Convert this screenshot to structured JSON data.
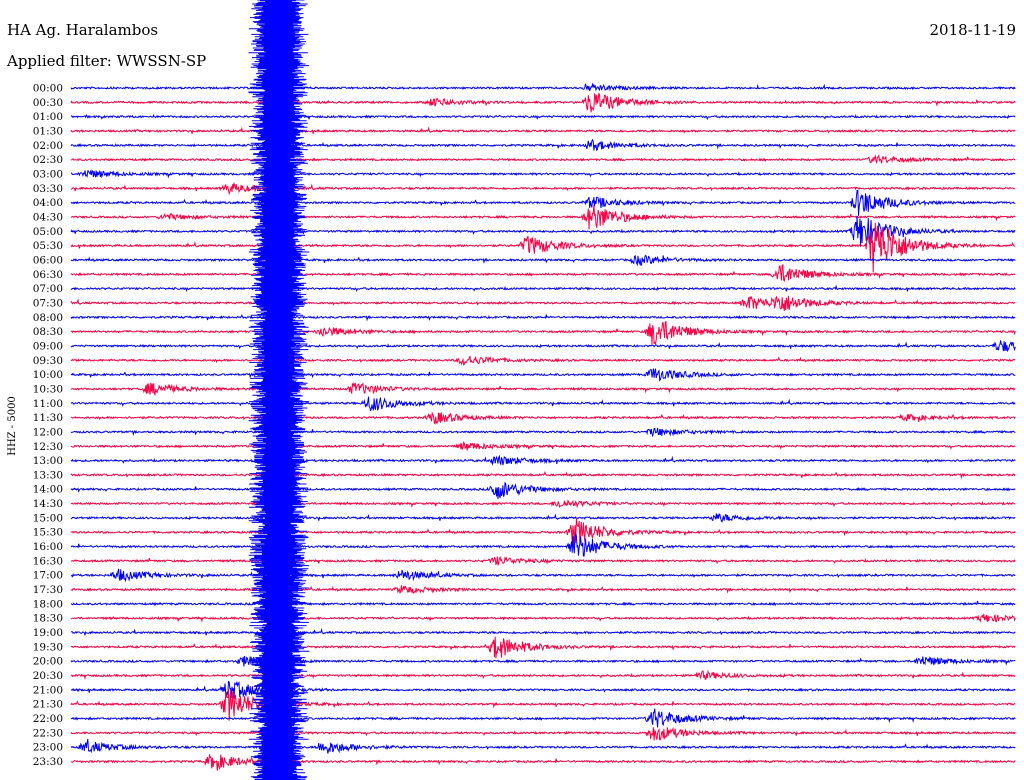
{
  "header": {
    "station": "HA Ag. Haralambos",
    "date": "2018-11-19",
    "filter": "Applied filter: WWSSN-SP"
  },
  "colors": {
    "odd_row": "#0000ff",
    "even_row": "#ff0044",
    "background": "#ffffff"
  },
  "chart_data": {
    "type": "line",
    "subtype": "helicorder",
    "ylabel": "HHZ - 5000",
    "row_labels": [
      "00:00",
      "00:30",
      "01:00",
      "01:30",
      "02:00",
      "02:30",
      "03:00",
      "03:30",
      "04:00",
      "04:30",
      "05:00",
      "05:30",
      "06:00",
      "06:30",
      "07:00",
      "07:30",
      "08:00",
      "08:30",
      "09:00",
      "09:30",
      "10:00",
      "10:30",
      "11:00",
      "11:30",
      "12:00",
      "12:30",
      "13:00",
      "13:30",
      "14:00",
      "14:30",
      "15:00",
      "15:30",
      "16:00",
      "16:30",
      "17:00",
      "17:30",
      "18:00",
      "18:30",
      "19:00",
      "19:30",
      "20:00",
      "20:30",
      "21:00",
      "21:30",
      "22:00",
      "22:30",
      "23:00",
      "23:30"
    ],
    "row_minutes": 30,
    "series_colors": [
      "#0000ff",
      "#ff0044"
    ],
    "events": [
      {
        "row": 0,
        "minute": 16.5,
        "amp": 3
      },
      {
        "row": 1,
        "minute": 11.5,
        "amp": 4
      },
      {
        "row": 1,
        "minute": 16.5,
        "amp": 12
      },
      {
        "row": 4,
        "minute": 16.5,
        "amp": 5
      },
      {
        "row": 5,
        "minute": 25.5,
        "amp": 4
      },
      {
        "row": 6,
        "minute": 0.5,
        "amp": 4
      },
      {
        "row": 7,
        "minute": 5,
        "amp": 5
      },
      {
        "row": 8,
        "minute": 16.5,
        "amp": 6
      },
      {
        "row": 8,
        "minute": 25,
        "amp": 14
      },
      {
        "row": 9,
        "minute": 16.5,
        "amp": 14
      },
      {
        "row": 9,
        "minute": 3,
        "amp": 3
      },
      {
        "row": 10,
        "minute": 25,
        "amp": 18
      },
      {
        "row": 11,
        "minute": 14.5,
        "amp": 10
      },
      {
        "row": 11,
        "minute": 25.5,
        "amp": 30
      },
      {
        "row": 12,
        "minute": 18,
        "amp": 5
      },
      {
        "row": 13,
        "minute": 22.5,
        "amp": 10
      },
      {
        "row": 15,
        "minute": 21.5,
        "amp": 7
      },
      {
        "row": 15,
        "minute": 22.5,
        "amp": 8
      },
      {
        "row": 17,
        "minute": 18.5,
        "amp": 15
      },
      {
        "row": 17,
        "minute": 8,
        "amp": 5
      },
      {
        "row": 18,
        "minute": 29.5,
        "amp": 6
      },
      {
        "row": 19,
        "minute": 12.5,
        "amp": 5
      },
      {
        "row": 20,
        "minute": 18.5,
        "amp": 7
      },
      {
        "row": 21,
        "minute": 2.5,
        "amp": 6
      },
      {
        "row": 21,
        "minute": 9,
        "amp": 6
      },
      {
        "row": 22,
        "minute": 9.5,
        "amp": 8
      },
      {
        "row": 23,
        "minute": 11.5,
        "amp": 6
      },
      {
        "row": 23,
        "minute": 26.5,
        "amp": 3
      },
      {
        "row": 24,
        "minute": 18.5,
        "amp": 4
      },
      {
        "row": 25,
        "minute": 12.5,
        "amp": 4
      },
      {
        "row": 26,
        "minute": 13.5,
        "amp": 5
      },
      {
        "row": 28,
        "minute": 13.5,
        "amp": 10
      },
      {
        "row": 29,
        "minute": 15.5,
        "amp": 4
      },
      {
        "row": 30,
        "minute": 20.5,
        "amp": 4
      },
      {
        "row": 31,
        "minute": 16,
        "amp": 14
      },
      {
        "row": 32,
        "minute": 16,
        "amp": 14
      },
      {
        "row": 33,
        "minute": 13.5,
        "amp": 4
      },
      {
        "row": 34,
        "minute": 1.5,
        "amp": 6
      },
      {
        "row": 34,
        "minute": 10.5,
        "amp": 5
      },
      {
        "row": 35,
        "minute": 10.5,
        "amp": 4
      },
      {
        "row": 37,
        "minute": 29,
        "amp": 4
      },
      {
        "row": 39,
        "minute": 13.5,
        "amp": 12
      },
      {
        "row": 40,
        "minute": 5.5,
        "amp": 5
      },
      {
        "row": 40,
        "minute": 27,
        "amp": 5
      },
      {
        "row": 41,
        "minute": 20,
        "amp": 4
      },
      {
        "row": 42,
        "minute": 5,
        "amp": 10
      },
      {
        "row": 43,
        "minute": 5,
        "amp": 16
      },
      {
        "row": 44,
        "minute": 18.5,
        "amp": 10
      },
      {
        "row": 45,
        "minute": 18.5,
        "amp": 8
      },
      {
        "row": 46,
        "minute": 0.5,
        "amp": 6
      },
      {
        "row": 46,
        "minute": 8,
        "amp": 7
      },
      {
        "row": 47,
        "minute": 4.5,
        "amp": 8
      }
    ],
    "major_event": {
      "start_row": 0,
      "minute": 6.5,
      "duration_rows": 48
    }
  }
}
